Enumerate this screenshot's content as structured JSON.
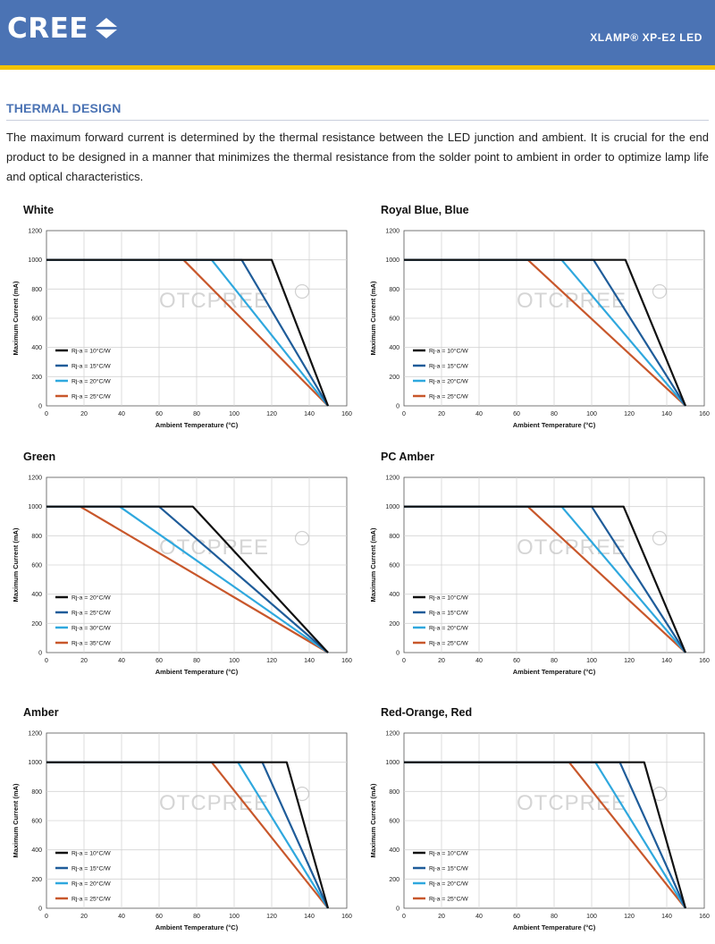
{
  "header": {
    "logo_text": "CREE",
    "product": "XLAMP® XP-E2 LED",
    "colors": {
      "bar": "#4b73b4",
      "rule": "#f2c300"
    }
  },
  "section": {
    "title": "THERMAL DESIGN",
    "intro": "The maximum forward current is determined by the thermal resistance between the LED junction and ambient. It is crucial for the end product to be designed in a manner that minimizes the thermal resistance from the solder point to ambient in order to optimize lamp life and optical characteristics."
  },
  "watermark": "OTCPREE",
  "chart_data": [
    {
      "type": "line",
      "title": "White",
      "xlabel": "Ambient Temperature (°C)",
      "ylabel": "Maximum Current (mA)",
      "xlim": [
        0,
        160
      ],
      "ylim": [
        0,
        1200
      ],
      "xticks": [
        0,
        20,
        40,
        60,
        80,
        100,
        120,
        140,
        160
      ],
      "yticks": [
        0,
        200,
        400,
        600,
        800,
        1000,
        1200
      ],
      "grid": true,
      "legend": "bottom-left",
      "series": [
        {
          "name": "Rj-a = 10°C/W",
          "color": "#111111",
          "points": [
            [
              0,
              1000
            ],
            [
              120,
              1000
            ],
            [
              150,
              0
            ]
          ]
        },
        {
          "name": "Rj-a = 15°C/W",
          "color": "#1f5c99",
          "points": [
            [
              0,
              1000
            ],
            [
              104,
              1000
            ],
            [
              150,
              0
            ]
          ]
        },
        {
          "name": "Rj-a = 20°C/W",
          "color": "#2fa8de",
          "points": [
            [
              0,
              1000
            ],
            [
              88,
              1000
            ],
            [
              150,
              0
            ]
          ]
        },
        {
          "name": "Rj-a = 25°C/W",
          "color": "#c8572b",
          "points": [
            [
              0,
              1000
            ],
            [
              73,
              1000
            ],
            [
              150,
              0
            ]
          ]
        }
      ]
    },
    {
      "type": "line",
      "title": "Royal Blue, Blue",
      "xlabel": "Ambient Temperature (°C)",
      "ylabel": "Maximum Current (mA)",
      "xlim": [
        0,
        160
      ],
      "ylim": [
        0,
        1200
      ],
      "xticks": [
        0,
        20,
        40,
        60,
        80,
        100,
        120,
        140,
        160
      ],
      "yticks": [
        0,
        200,
        400,
        600,
        800,
        1000,
        1200
      ],
      "grid": true,
      "legend": "bottom-left",
      "series": [
        {
          "name": "Rj-a = 10°C/W",
          "color": "#111111",
          "points": [
            [
              0,
              1000
            ],
            [
              118,
              1000
            ],
            [
              150,
              0
            ]
          ]
        },
        {
          "name": "Rj-a = 15°C/W",
          "color": "#1f5c99",
          "points": [
            [
              0,
              1000
            ],
            [
              101,
              1000
            ],
            [
              150,
              0
            ]
          ]
        },
        {
          "name": "Rj-a = 20°C/W",
          "color": "#2fa8de",
          "points": [
            [
              0,
              1000
            ],
            [
              84,
              1000
            ],
            [
              150,
              0
            ]
          ]
        },
        {
          "name": "Rj-a = 25°C/W",
          "color": "#c8572b",
          "points": [
            [
              0,
              1000
            ],
            [
              66,
              1000
            ],
            [
              150,
              0
            ]
          ]
        }
      ]
    },
    {
      "type": "line",
      "title": "Green",
      "xlabel": "Ambient Temperature (°C)",
      "ylabel": "Maximum Current (mA)",
      "xlim": [
        0,
        160
      ],
      "ylim": [
        0,
        1200
      ],
      "xticks": [
        0,
        20,
        40,
        60,
        80,
        100,
        120,
        140,
        160
      ],
      "yticks": [
        0,
        200,
        400,
        600,
        800,
        1000,
        1200
      ],
      "grid": true,
      "legend": "bottom-left",
      "series": [
        {
          "name": "Rj-a = 20°C/W",
          "color": "#111111",
          "points": [
            [
              0,
              1000
            ],
            [
              78,
              1000
            ],
            [
              150,
              0
            ]
          ]
        },
        {
          "name": "Rj-a = 25°C/W",
          "color": "#1f5c99",
          "points": [
            [
              0,
              1000
            ],
            [
              60,
              1000
            ],
            [
              150,
              0
            ]
          ]
        },
        {
          "name": "Rj-a = 30°C/W",
          "color": "#2fa8de",
          "points": [
            [
              0,
              1000
            ],
            [
              39,
              1000
            ],
            [
              150,
              0
            ]
          ]
        },
        {
          "name": "Rj-a = 35°C/W",
          "color": "#c8572b",
          "points": [
            [
              0,
              1000
            ],
            [
              18,
              1000
            ],
            [
              150,
              0
            ]
          ]
        }
      ]
    },
    {
      "type": "line",
      "title": "PC Amber",
      "xlabel": "Ambient Temperature (°C)",
      "ylabel": "Maximum Current (mA)",
      "xlim": [
        0,
        160
      ],
      "ylim": [
        0,
        1200
      ],
      "xticks": [
        0,
        20,
        40,
        60,
        80,
        100,
        120,
        140,
        160
      ],
      "yticks": [
        0,
        200,
        400,
        600,
        800,
        1000,
        1200
      ],
      "grid": true,
      "legend": "bottom-left",
      "series": [
        {
          "name": "Rj-a = 10°C/W",
          "color": "#111111",
          "points": [
            [
              0,
              1000
            ],
            [
              117,
              1000
            ],
            [
              150,
              0
            ]
          ]
        },
        {
          "name": "Rj-a = 15°C/W",
          "color": "#1f5c99",
          "points": [
            [
              0,
              1000
            ],
            [
              100,
              1000
            ],
            [
              150,
              0
            ]
          ]
        },
        {
          "name": "Rj-a = 20°C/W",
          "color": "#2fa8de",
          "points": [
            [
              0,
              1000
            ],
            [
              84,
              1000
            ],
            [
              150,
              0
            ]
          ]
        },
        {
          "name": "Rj-a = 25°C/W",
          "color": "#c8572b",
          "points": [
            [
              0,
              1000
            ],
            [
              66,
              1000
            ],
            [
              150,
              0
            ]
          ]
        }
      ]
    },
    {
      "type": "line",
      "title": "Amber",
      "xlabel": "Ambient Temperature (°C)",
      "ylabel": "Maximum Current (mA)",
      "xlim": [
        0,
        160
      ],
      "ylim": [
        0,
        1200
      ],
      "xticks": [
        0,
        20,
        40,
        60,
        80,
        100,
        120,
        140,
        160
      ],
      "yticks": [
        0,
        200,
        400,
        600,
        800,
        1000,
        1200
      ],
      "grid": true,
      "legend": "bottom-left",
      "series": [
        {
          "name": "Rj-a = 10°C/W",
          "color": "#111111",
          "points": [
            [
              0,
              1000
            ],
            [
              128,
              1000
            ],
            [
              150,
              0
            ]
          ]
        },
        {
          "name": "Rj-a = 15°C/W",
          "color": "#1f5c99",
          "points": [
            [
              0,
              1000
            ],
            [
              115,
              1000
            ],
            [
              150,
              0
            ]
          ]
        },
        {
          "name": "Rj-a = 20°C/W",
          "color": "#2fa8de",
          "points": [
            [
              0,
              1000
            ],
            [
              102,
              1000
            ],
            [
              150,
              0
            ]
          ]
        },
        {
          "name": "Rj-a = 25°C/W",
          "color": "#c8572b",
          "points": [
            [
              0,
              1000
            ],
            [
              88,
              1000
            ],
            [
              150,
              0
            ]
          ]
        }
      ]
    },
    {
      "type": "line",
      "title": "Red-Orange, Red",
      "xlabel": "Ambient Temperature (°C)",
      "ylabel": "Maximum Current (mA)",
      "xlim": [
        0,
        160
      ],
      "ylim": [
        0,
        1200
      ],
      "xticks": [
        0,
        20,
        40,
        60,
        80,
        100,
        120,
        140,
        160
      ],
      "yticks": [
        0,
        200,
        400,
        600,
        800,
        1000,
        1200
      ],
      "grid": true,
      "legend": "bottom-left",
      "series": [
        {
          "name": "Rj-a = 10°C/W",
          "color": "#111111",
          "points": [
            [
              0,
              1000
            ],
            [
              128,
              1000
            ],
            [
              150,
              0
            ]
          ]
        },
        {
          "name": "Rj-a = 15°C/W",
          "color": "#1f5c99",
          "points": [
            [
              0,
              1000
            ],
            [
              115,
              1000
            ],
            [
              150,
              0
            ]
          ]
        },
        {
          "name": "Rj-a = 20°C/W",
          "color": "#2fa8de",
          "points": [
            [
              0,
              1000
            ],
            [
              102,
              1000
            ],
            [
              150,
              0
            ]
          ]
        },
        {
          "name": "Rj-a = 25°C/W",
          "color": "#c8572b",
          "points": [
            [
              0,
              1000
            ],
            [
              88,
              1000
            ],
            [
              150,
              0
            ]
          ]
        }
      ]
    }
  ]
}
